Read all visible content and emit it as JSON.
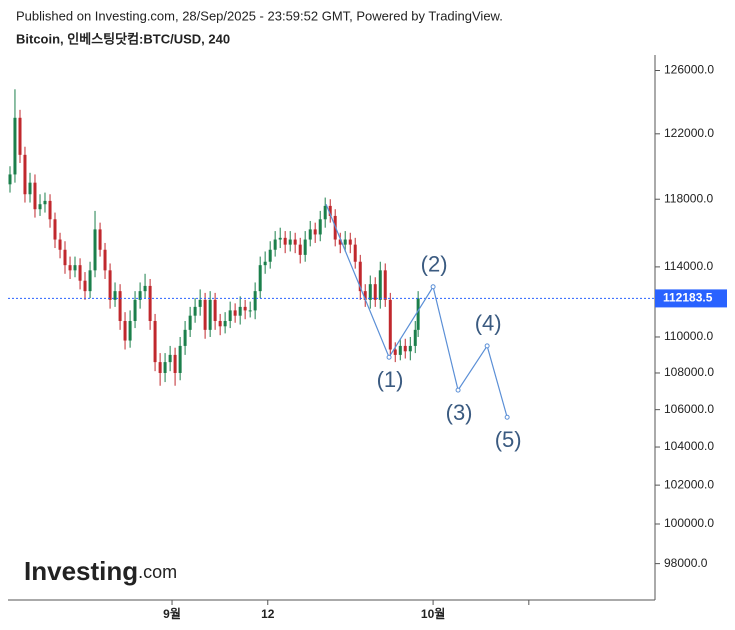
{
  "chart_data": {
    "type": "candlestick",
    "header": "Published on Investing.com, 28/Sep/2025 - 23:59:52 GMT, Powered by TradingView.",
    "title": "Bitcoin, 인베스팅닷컴:BTC/USD, 240",
    "logo": [
      "Investing",
      ".com"
    ],
    "log_scale": true,
    "up_color": "#1b7f4b",
    "down_color": "#c0282d",
    "line_color": "#5b8fd6",
    "price_color": "#2962ff",
    "xlim": [
      -18.85,
      55.5
    ],
    "xticks": [
      {
        "value": 0,
        "label": "9월"
      },
      {
        "value": 11,
        "label": "12"
      },
      {
        "value": 30,
        "label": "10월"
      },
      {
        "value": 41,
        "label": null
      }
    ],
    "ylim": [
      96200,
      127000
    ],
    "yticks": [
      {
        "value": 126000,
        "label": "126000.0"
      },
      {
        "value": 122000,
        "label": "122000.0"
      },
      {
        "value": 118000,
        "label": "118000.0"
      },
      {
        "value": 114000,
        "label": "114000.0"
      },
      {
        "value": 110000,
        "label": "110000.0"
      },
      {
        "value": 108000,
        "label": "108000.0"
      },
      {
        "value": 106000,
        "label": "106000.0"
      },
      {
        "value": 104000,
        "label": "104000.0"
      },
      {
        "value": 102000,
        "label": "102000.0"
      },
      {
        "value": 100000,
        "label": "100000.0"
      },
      {
        "value": 98000,
        "label": "98000.0"
      }
    ],
    "last_price": 112183.5,
    "x": [
      -18.62,
      -18.05,
      -17.47,
      -16.9,
      -16.32,
      -15.75,
      -15.17,
      -14.6,
      -14.02,
      -13.45,
      -12.87,
      -12.3,
      -11.72,
      -11.15,
      -10.57,
      -10.0,
      -9.42,
      -8.85,
      -8.27,
      -7.7,
      -7.12,
      -6.55,
      -5.97,
      -5.4,
      -4.82,
      -4.25,
      -3.67,
      -3.1,
      -2.52,
      -1.95,
      -1.37,
      -0.8,
      -0.22,
      0.35,
      0.93,
      1.5,
      2.08,
      2.65,
      3.23,
      3.8,
      4.38,
      4.95,
      5.53,
      6.1,
      6.68,
      7.25,
      7.83,
      8.4,
      8.98,
      9.55,
      10.13,
      10.7,
      11.28,
      11.85,
      12.43,
      13.0,
      13.58,
      14.15,
      14.73,
      15.3,
      15.88,
      16.45,
      17.03,
      17.6,
      18.18,
      18.75,
      19.33,
      19.9,
      20.48,
      21.05,
      21.63,
      22.2,
      22.78,
      23.35,
      23.93,
      24.5,
      25.08,
      25.65,
      26.23,
      26.8,
      27.38,
      27.95,
      28.28
    ],
    "open": [
      118900,
      119500,
      123000,
      120700,
      118300,
      119000,
      117400,
      117700,
      117900,
      116800,
      115600,
      115000,
      114100,
      113800,
      114100,
      113200,
      112600,
      113800,
      116200,
      115000,
      113800,
      112100,
      112600,
      110900,
      109800,
      110900,
      112100,
      112600,
      112900,
      110900,
      108600,
      108000,
      108600,
      109000,
      108000,
      109500,
      110400,
      111200,
      111700,
      112100,
      110400,
      112100,
      110900,
      110600,
      110900,
      111500,
      111200,
      111700,
      111500,
      111500,
      112600,
      114100,
      114300,
      115000,
      115600,
      115700,
      115300,
      115600,
      115300,
      114700,
      115600,
      116200,
      115900,
      116800,
      117600,
      117000,
      115600,
      115300,
      115600,
      115300,
      114300,
      112600,
      112100,
      113000,
      112100,
      113800,
      112100,
      109300,
      109000,
      109500,
      109200,
      109500,
      110400
    ],
    "high": [
      120000,
      124800,
      123500,
      121200,
      119600,
      119500,
      118300,
      118400,
      118300,
      117200,
      116000,
      115500,
      114600,
      114600,
      114500,
      113700,
      114300,
      117300,
      116600,
      115400,
      114200,
      113100,
      113000,
      111400,
      111500,
      112600,
      113100,
      113600,
      113300,
      111300,
      109100,
      109100,
      109500,
      109400,
      110000,
      110900,
      111700,
      112200,
      112700,
      112500,
      112600,
      112500,
      111300,
      111400,
      112000,
      111900,
      112300,
      112100,
      112000,
      113100,
      114600,
      114900,
      115500,
      116100,
      116300,
      116100,
      116100,
      116000,
      115700,
      116100,
      116700,
      116600,
      117300,
      118100,
      118000,
      117400,
      116000,
      116100,
      116000,
      115700,
      114700,
      113000,
      113500,
      113400,
      114300,
      114200,
      112500,
      109700,
      109900,
      109900,
      110000,
      110900,
      112600
    ],
    "low": [
      118400,
      119000,
      120200,
      117800,
      117800,
      116900,
      117000,
      117200,
      116300,
      115100,
      114500,
      113600,
      113300,
      113400,
      112700,
      112100,
      112200,
      113400,
      114600,
      113300,
      111600,
      111700,
      110400,
      109300,
      109400,
      110500,
      111600,
      112200,
      110400,
      108100,
      107300,
      107500,
      108100,
      107300,
      107600,
      109000,
      110000,
      110800,
      111200,
      109900,
      110000,
      110400,
      110100,
      110200,
      110500,
      110800,
      110700,
      111000,
      111100,
      111000,
      112200,
      113600,
      113900,
      114600,
      115100,
      114800,
      114900,
      114800,
      114200,
      114300,
      115200,
      115400,
      115500,
      116300,
      116600,
      115200,
      114800,
      114900,
      114800,
      113900,
      112100,
      111700,
      111600,
      111700,
      111600,
      111700,
      108900,
      108600,
      108700,
      108800,
      108700,
      109100,
      110000
    ],
    "close": [
      119500,
      123000,
      120700,
      118300,
      119000,
      117400,
      117700,
      117900,
      116800,
      115600,
      115000,
      114100,
      113800,
      114100,
      113200,
      112600,
      113800,
      116200,
      115000,
      113800,
      112100,
      112600,
      110900,
      109800,
      110900,
      112100,
      112600,
      112900,
      110900,
      108600,
      108000,
      108600,
      109000,
      108000,
      109500,
      110400,
      111200,
      111700,
      112100,
      110400,
      112100,
      110900,
      110600,
      110900,
      111500,
      111200,
      111700,
      111500,
      111500,
      112600,
      114100,
      114300,
      115000,
      115600,
      115700,
      115300,
      115600,
      115300,
      114700,
      115600,
      116200,
      115900,
      116800,
      117600,
      117000,
      115600,
      115300,
      115600,
      115300,
      114300,
      112600,
      112100,
      113000,
      112100,
      113800,
      112100,
      109300,
      109000,
      109500,
      109200,
      109500,
      110400,
      112183.5
    ],
    "waves": {
      "labels": [
        null,
        "(1)",
        "(2)",
        "(3)",
        "(4)",
        "(5)"
      ],
      "x": [
        17.7,
        24.94,
        30.0,
        32.87,
        36.21,
        38.51
      ],
      "y": [
        117700,
        108870,
        112850,
        107060,
        109500,
        105590
      ]
    }
  }
}
